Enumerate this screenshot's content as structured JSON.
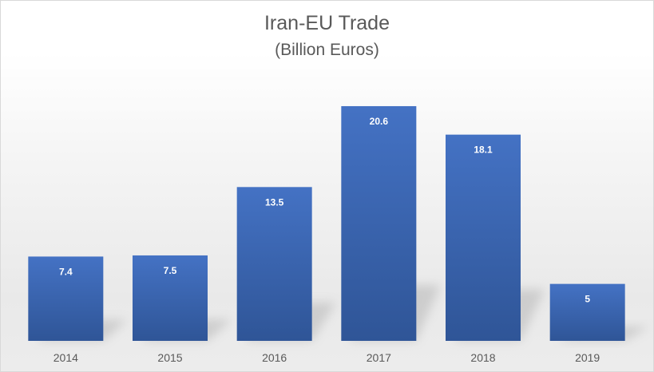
{
  "chart_data": {
    "type": "bar",
    "title": "Iran-EU Trade",
    "subtitle": "(Billion Euros)",
    "xlabel": "",
    "ylabel": "",
    "categories": [
      "2014",
      "2015",
      "2016",
      "2017",
      "2018",
      "2019"
    ],
    "values": [
      7.4,
      7.5,
      13.5,
      20.6,
      18.1,
      5
    ],
    "data_labels": [
      "7.4",
      "7.5",
      "13.5",
      "20.6",
      "18.1",
      "5"
    ],
    "ylim": [
      0,
      22.84
    ],
    "grid": false,
    "legend": "none",
    "bar_color": "#4472c4",
    "bar_color_dark": "#2f5597",
    "label_color": "#ffffff",
    "text_color": "#595959"
  }
}
